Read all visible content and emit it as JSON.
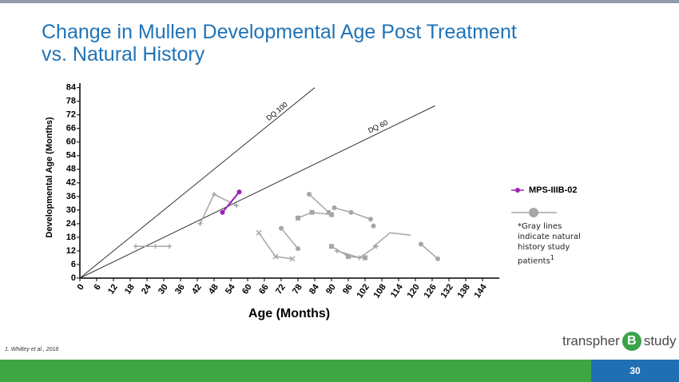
{
  "chart_data": {
    "type": "line",
    "title": [
      "Change in Mullen Developmental Age Post Treatment",
      "vs. Natural History"
    ],
    "x_label": "Age (Months)",
    "y_label": "Developmental Age (Months)",
    "xlim": [
      0,
      150
    ],
    "ylim": [
      0,
      86
    ],
    "xticks": [
      0,
      6,
      12,
      18,
      24,
      30,
      36,
      42,
      48,
      54,
      60,
      66,
      72,
      78,
      84,
      90,
      96,
      102,
      108,
      114,
      120,
      126,
      132,
      138,
      144
    ],
    "yticks": [
      0,
      6,
      12,
      18,
      24,
      30,
      36,
      42,
      48,
      54,
      60,
      66,
      72,
      78,
      84
    ],
    "reference_lines": [
      {
        "label": "DQ 100",
        "x": [
          0,
          84
        ],
        "y": [
          0,
          84
        ]
      },
      {
        "label": "DQ 60",
        "x": [
          0,
          127
        ],
        "y": [
          0,
          76
        ]
      }
    ],
    "series": [
      {
        "name": "MPS-IIIB-02",
        "color": "#9b1fb5",
        "marker": "circle",
        "x": [
          51,
          57
        ],
        "values": [
          29,
          38
        ]
      }
    ],
    "natural_history": {
      "color": "#a6a6a6",
      "note": "*Gray lines indicate natural history study patients",
      "note_ref": "1",
      "series": [
        {
          "marker": "plus",
          "x": [
            20,
            27,
            32
          ],
          "values": [
            14,
            14,
            14
          ]
        },
        {
          "marker": "plus",
          "x": [
            43,
            48,
            56
          ],
          "values": [
            24,
            37,
            32
          ]
        },
        {
          "marker": "cross",
          "x": [
            64,
            70,
            76
          ],
          "values": [
            20,
            9.5,
            8.5
          ]
        },
        {
          "marker": "circle",
          "x": [
            72,
            78
          ],
          "values": [
            22,
            13
          ]
        },
        {
          "marker": "square",
          "x": [
            78,
            83,
            90
          ],
          "values": [
            26.5,
            29,
            28
          ]
        },
        {
          "marker": "circle",
          "x": [
            82,
            89
          ],
          "values": [
            37,
            29
          ]
        },
        {
          "marker": "circle",
          "x": [
            91,
            97,
            104
          ],
          "values": [
            31,
            29,
            26
          ]
        },
        {
          "marker": "square",
          "x": [
            90,
            96,
            102
          ],
          "values": [
            14,
            9.5,
            9
          ]
        },
        {
          "marker": "plus",
          "x": [
            92,
            100,
            106
          ],
          "values": [
            12,
            9,
            14
          ]
        },
        {
          "marker": "circle",
          "x": [
            105
          ],
          "values": [
            23
          ]
        },
        {
          "marker": "none",
          "x": [
            105,
            111,
            118
          ],
          "values": [
            14,
            20,
            19
          ]
        },
        {
          "marker": "circle",
          "x": [
            122,
            128
          ],
          "values": [
            15,
            8.5
          ]
        }
      ]
    }
  },
  "footer": {
    "reference": "1. Whitley et al., 2018",
    "page_number": "30",
    "logo": [
      "transpher",
      "B",
      "study"
    ]
  }
}
